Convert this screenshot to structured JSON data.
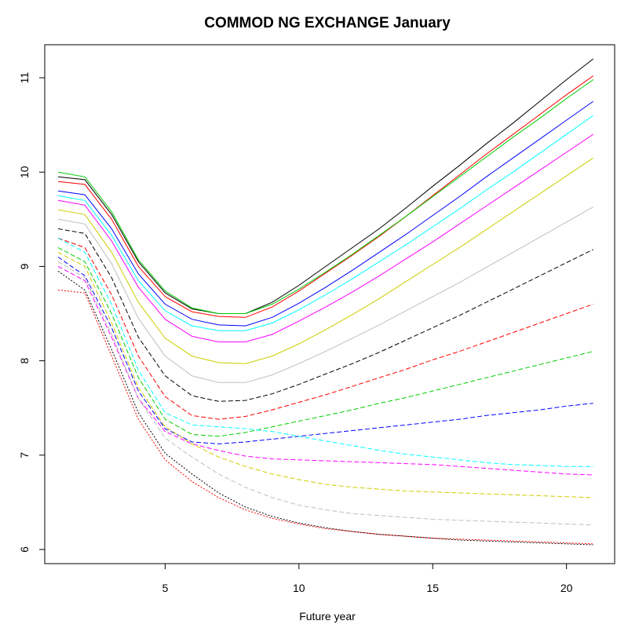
{
  "chart_data": {
    "type": "line",
    "title": "COMMOD NG EXCHANGE January",
    "xlabel": "Future year",
    "ylabel": "",
    "xlim": [
      0.5,
      21.8
    ],
    "ylim": [
      5.85,
      11.35
    ],
    "x_ticks": [
      5,
      10,
      15,
      20
    ],
    "y_ticks": [
      6,
      7,
      8,
      9,
      10,
      11
    ],
    "x": [
      1,
      2,
      3,
      4,
      5,
      6,
      7,
      8,
      9,
      10,
      11,
      12,
      13,
      14,
      15,
      16,
      17,
      18,
      19,
      20,
      21
    ],
    "grid": false,
    "legend": "none",
    "series_count": 18,
    "palette": [
      "#000000",
      "#ff0000",
      "#00cd00",
      "#0000ff",
      "#00ffff",
      "#ff00ff",
      "#cdcd00",
      "#bebebe"
    ],
    "line_styles": [
      "solid",
      "dashed",
      "dotted"
    ],
    "series": [
      {
        "values": [
          9.95,
          9.92,
          9.55,
          9.05,
          8.72,
          8.55,
          8.5,
          8.5,
          8.62,
          8.8,
          9.0,
          9.2,
          9.4,
          9.62,
          9.85,
          10.07,
          10.3,
          10.52,
          10.75,
          10.98,
          11.2
        ]
      },
      {
        "values": [
          9.9,
          9.87,
          9.5,
          9.0,
          8.68,
          8.52,
          8.47,
          8.46,
          8.57,
          8.74,
          8.93,
          9.12,
          9.32,
          9.53,
          9.75,
          9.97,
          10.19,
          10.4,
          10.61,
          10.82,
          11.02
        ]
      },
      {
        "values": [
          10.0,
          9.95,
          9.58,
          9.07,
          8.74,
          8.56,
          8.5,
          8.5,
          8.6,
          8.76,
          8.94,
          9.13,
          9.33,
          9.53,
          9.74,
          9.95,
          10.16,
          10.37,
          10.57,
          10.78,
          10.98
        ]
      },
      {
        "values": [
          9.8,
          9.76,
          9.4,
          8.92,
          8.6,
          8.44,
          8.38,
          8.37,
          8.46,
          8.61,
          8.78,
          8.96,
          9.15,
          9.34,
          9.54,
          9.74,
          9.95,
          10.15,
          10.35,
          10.55,
          10.75
        ]
      },
      {
        "values": [
          9.75,
          9.7,
          9.33,
          8.85,
          8.53,
          8.37,
          8.32,
          8.32,
          8.4,
          8.54,
          8.7,
          8.87,
          9.05,
          9.23,
          9.42,
          9.61,
          9.81,
          10.0,
          10.2,
          10.4,
          10.6
        ]
      },
      {
        "values": [
          9.7,
          9.65,
          9.27,
          8.78,
          8.44,
          8.26,
          8.2,
          8.2,
          8.28,
          8.42,
          8.57,
          8.73,
          8.9,
          9.08,
          9.26,
          9.45,
          9.64,
          9.83,
          10.02,
          10.21,
          10.4
        ]
      },
      {
        "values": [
          9.6,
          9.55,
          9.15,
          8.62,
          8.24,
          8.05,
          7.98,
          7.97,
          8.05,
          8.18,
          8.33,
          8.49,
          8.66,
          8.84,
          9.02,
          9.2,
          9.39,
          9.58,
          9.77,
          9.96,
          10.15
        ]
      },
      {
        "values": [
          9.5,
          9.45,
          9.03,
          8.45,
          8.05,
          7.84,
          7.77,
          7.77,
          7.85,
          7.97,
          8.1,
          8.24,
          8.38,
          8.53,
          8.68,
          8.83,
          8.99,
          9.15,
          9.31,
          9.47,
          9.63
        ]
      },
      {
        "values": [
          9.4,
          9.35,
          8.88,
          8.25,
          7.84,
          7.63,
          7.57,
          7.58,
          7.65,
          7.75,
          7.86,
          7.97,
          8.09,
          8.22,
          8.35,
          8.48,
          8.62,
          8.76,
          8.9,
          9.04,
          9.18
        ]
      },
      {
        "values": [
          9.3,
          9.2,
          8.7,
          8.05,
          7.62,
          7.42,
          7.38,
          7.41,
          7.48,
          7.56,
          7.64,
          7.73,
          7.82,
          7.91,
          8.01,
          8.1,
          8.2,
          8.3,
          8.4,
          8.5,
          8.6
        ]
      },
      {
        "values": [
          9.2,
          9.05,
          8.5,
          7.82,
          7.38,
          7.22,
          7.2,
          7.24,
          7.3,
          7.36,
          7.42,
          7.48,
          7.55,
          7.61,
          7.68,
          7.75,
          7.82,
          7.89,
          7.96,
          8.03,
          8.1
        ]
      },
      {
        "values": [
          9.1,
          8.9,
          8.35,
          7.68,
          7.28,
          7.14,
          7.12,
          7.14,
          7.17,
          7.2,
          7.23,
          7.26,
          7.29,
          7.32,
          7.35,
          7.38,
          7.42,
          7.45,
          7.48,
          7.52,
          7.55
        ]
      },
      {
        "values": [
          9.3,
          9.15,
          8.6,
          7.9,
          7.45,
          7.32,
          7.3,
          7.28,
          7.25,
          7.2,
          7.15,
          7.1,
          7.05,
          7.01,
          6.98,
          6.95,
          6.92,
          6.9,
          6.89,
          6.88,
          6.88
        ]
      },
      {
        "values": [
          9.0,
          8.85,
          8.25,
          7.6,
          7.25,
          7.12,
          7.05,
          6.99,
          6.96,
          6.95,
          6.94,
          6.93,
          6.92,
          6.91,
          6.9,
          6.88,
          6.86,
          6.84,
          6.82,
          6.8,
          6.79
        ]
      },
      {
        "values": [
          9.15,
          9.0,
          8.4,
          7.72,
          7.3,
          7.12,
          6.98,
          6.88,
          6.8,
          6.74,
          6.69,
          6.66,
          6.64,
          6.62,
          6.61,
          6.6,
          6.59,
          6.58,
          6.57,
          6.56,
          6.55
        ]
      },
      {
        "values": [
          9.05,
          8.88,
          8.28,
          7.6,
          7.18,
          6.98,
          6.8,
          6.66,
          6.55,
          6.47,
          6.42,
          6.38,
          6.36,
          6.34,
          6.32,
          6.31,
          6.3,
          6.29,
          6.28,
          6.27,
          6.26
        ]
      },
      {
        "values": [
          8.95,
          8.75,
          8.12,
          7.45,
          7.02,
          6.8,
          6.6,
          6.45,
          6.35,
          6.28,
          6.23,
          6.19,
          6.16,
          6.14,
          6.12,
          6.1,
          6.09,
          6.08,
          6.07,
          6.06,
          6.05
        ]
      },
      {
        "values": [
          8.75,
          8.72,
          8.05,
          7.38,
          6.95,
          6.72,
          6.55,
          6.42,
          6.33,
          6.27,
          6.22,
          6.19,
          6.16,
          6.14,
          6.12,
          6.11,
          6.1,
          6.09,
          6.08,
          6.07,
          6.06
        ]
      }
    ]
  }
}
